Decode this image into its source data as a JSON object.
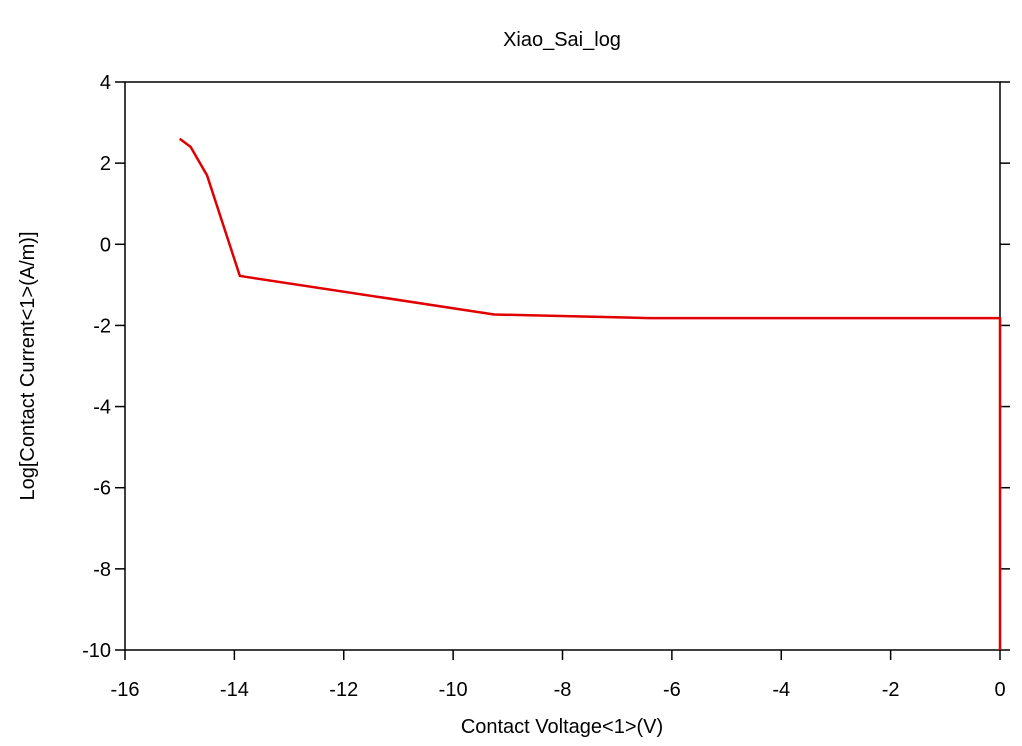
{
  "chart_data": {
    "type": "line",
    "title": "Xiao_Sai_log",
    "x_label": "Contact Voltage<1>(V)",
    "y_label": "Log[Contact Current<1>(A/m)]",
    "x": [
      -15.0,
      -14.8,
      -14.5,
      -13.9,
      -9.25,
      -6.4,
      0,
      0
    ],
    "series": [
      {
        "name": "Xiao_Sai_log",
        "color": "#e00000",
        "values": [
          2.6,
          2.4,
          1.7,
          -0.78,
          -1.73,
          -1.82,
          -1.82,
          -10
        ]
      }
    ],
    "xlim": [
      -16,
      0
    ],
    "xticks": [
      -16,
      -14,
      -12,
      -10,
      -8,
      -6,
      -4,
      -2,
      0
    ],
    "ylim": [
      -10,
      4
    ],
    "yticks": [
      -10,
      -8,
      -6,
      -4,
      -2,
      0,
      2,
      4
    ],
    "grid": false
  }
}
